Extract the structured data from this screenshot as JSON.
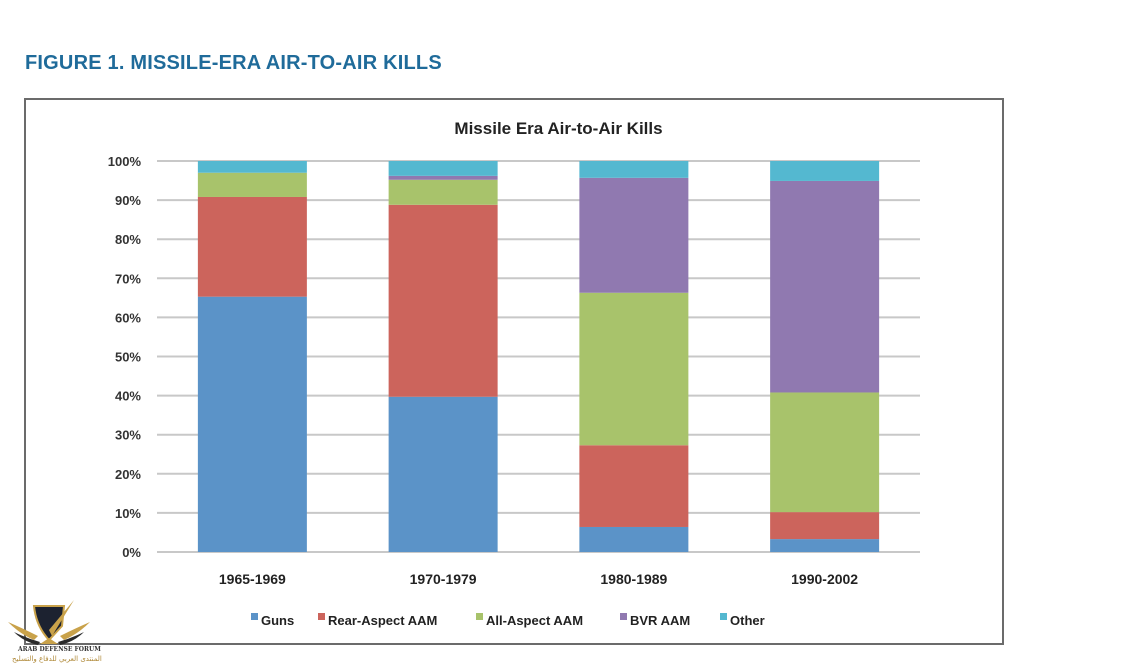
{
  "figure": {
    "title": "FIGURE 1. MISSILE-ERA AIR-TO-AIR KILLS"
  },
  "chart_data": {
    "type": "bar",
    "stacked": true,
    "percent_stacked": true,
    "title": "Missile Era Air-to-Air Kills",
    "xlabel": "",
    "ylabel": "",
    "ylim": [
      0,
      100
    ],
    "y_ticks": [
      "0%",
      "10%",
      "20%",
      "30%",
      "40%",
      "50%",
      "60%",
      "70%",
      "80%",
      "90%",
      "100%"
    ],
    "grid": true,
    "legend_position": "bottom",
    "categories": [
      "1965-1969",
      "1970-1979",
      "1980-1989",
      "1990-2002"
    ],
    "series": [
      {
        "name": "Guns",
        "color": "#5b93c8",
        "values": [
          65.3,
          39.7,
          6.4,
          3.3
        ]
      },
      {
        "name": "Rear-Aspect AAM",
        "color": "#cc645c",
        "values": [
          25.5,
          49.1,
          20.9,
          6.9
        ]
      },
      {
        "name": "All-Aspect AAM",
        "color": "#a8c36b",
        "values": [
          6.2,
          6.4,
          39.0,
          30.6
        ]
      },
      {
        "name": "BVR AAM",
        "color": "#9079b0",
        "values": [
          0.0,
          1.0,
          29.4,
          54.1
        ]
      },
      {
        "name": "Other",
        "color": "#54b8d0",
        "values": [
          3.0,
          3.8,
          4.3,
          5.1
        ]
      }
    ]
  },
  "watermark": {
    "logo_icon": "arab-defense-forum-logo",
    "text_en": "ARAB DEFENSE FORUM",
    "text_ar": "المنتدى العربي للدفاع والتسليح"
  }
}
